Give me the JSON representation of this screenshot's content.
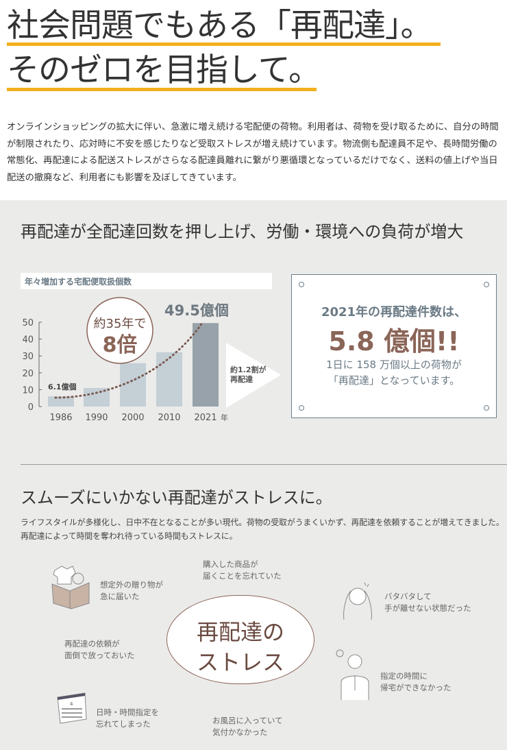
{
  "header": {
    "title_line1": "社会問題でもある「再配達」。",
    "title_line2": "そのゼロを目指して。",
    "accent_color": "#f2b01e"
  },
  "intro": "オンラインショッピングの拡大に伴い、急激に増え続ける宅配便の荷物。利用者は、荷物を受け取るために、自分の時間が制限されたり、応対時に不安を感じたりなど受取ストレスが増え続けています。物流側も配達員不足や、長時間労働の常態化、再配達による配送ストレスがさらなる配達員離れに繋がり悪循環となっているだけでなく、送料の値上げや当日配送の撤廃など、利用者にも影響を及ぼしてきています。",
  "section1": {
    "heading": "再配達が全配達回数を押し上げ、労働・環境への負荷が増大",
    "callout_circle": {
      "line1": "約35年で",
      "line2": "8倍"
    },
    "arrow_label": {
      "line1": "約1.2割が",
      "line2": "再配達"
    },
    "box": {
      "line1": "2021年の再配達件数は、",
      "line2": "5.8 億個!!",
      "line3": "1日に 158 万個以上の荷物が",
      "line4": "「再配達」となっています。"
    }
  },
  "chart_data": {
    "type": "bar",
    "title": "年々増加する宅配便取扱個数",
    "categories": [
      "1986",
      "1990",
      "2000",
      "2010",
      "2021"
    ],
    "values": [
      6.1,
      11,
      25.7,
      32.2,
      49.5
    ],
    "xunit": "年",
    "yticks": [
      "0",
      "10",
      "20",
      "30",
      "40",
      "50"
    ],
    "ylim": [
      0,
      50
    ],
    "data_labels": {
      "first": "6.1億個",
      "last": "49.5億個"
    },
    "trend_line": "dotted",
    "colors": {
      "bar": "#c4cfd6",
      "last_bar": "#98a2aa",
      "trend": "#7a5a50"
    }
  },
  "section2": {
    "heading": "スムーズにいかない再配達がストレスに。",
    "body_line1": "ライフスタイルが多様化し、日中不在となることが多い現代。荷物の受取がうまくいかず、再配達を依頼することが増えてきました。",
    "body_line2": "再配達によって時間を奪われ待っている時間もストレスに。",
    "center": {
      "line1": "再配達の",
      "line2": "ストレス"
    },
    "items": [
      {
        "line1": "想定外の贈り物が",
        "line2": "急に届いた",
        "icon": "box-icon"
      },
      {
        "line1": "購入した商品が",
        "line2": "届くことを忘れていた"
      },
      {
        "line1": "バタバタして",
        "line2": "手が離せない状態だった",
        "icon": "busy-person-icon"
      },
      {
        "line1": "再配達の依頼が",
        "line2": "面倒で放っておいた"
      },
      {
        "line1": "指定の時間に",
        "line2": "帰宅ができなかった",
        "icon": "worried-person-icon"
      },
      {
        "line1": "日時・時間指定を",
        "line2": "忘れてしまった",
        "icon": "calendar-icon"
      },
      {
        "line1": "お風呂に入っていて",
        "line2": "気付かなかった"
      }
    ]
  }
}
